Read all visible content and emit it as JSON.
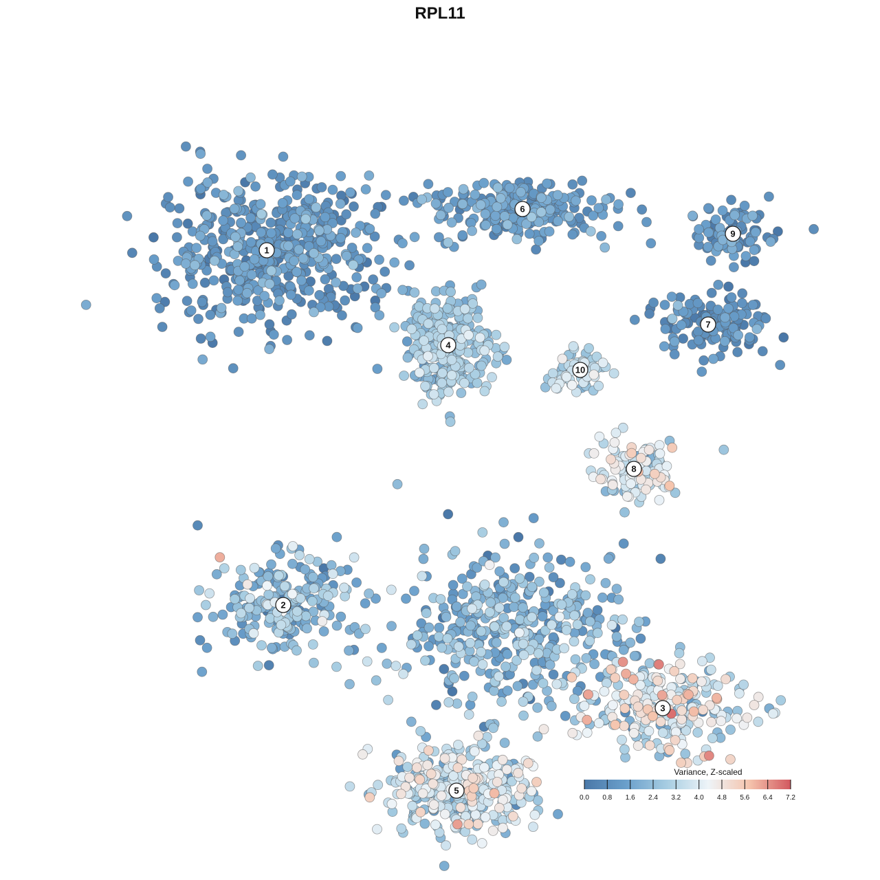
{
  "chart_data": {
    "type": "scatter",
    "title": "RPL11",
    "color_scale": {
      "title": "Variance, Z-scaled",
      "min": 0.0,
      "max": 7.2,
      "ticks": [
        "0.0",
        "0.8",
        "1.6",
        "2.4",
        "3.2",
        "4.0",
        "4.8",
        "5.6",
        "6.4",
        "7.2"
      ],
      "colors": [
        "#4a78a8",
        "#6a9fcb",
        "#a7cde2",
        "#eef4f8",
        "#f5c4ad",
        "#d2585f"
      ]
    },
    "axes_visible": false,
    "grid": false,
    "legend_position": "bottom-right",
    "clusters": [
      {
        "label": "1",
        "x": -4.2,
        "y": 4.6,
        "sx": 2.4,
        "sy": 1.6,
        "n": 520,
        "value": 1.0,
        "spread": 0.6
      },
      {
        "label": "6",
        "x": 2.0,
        "y": 5.6,
        "sx": 2.0,
        "sy": 0.7,
        "n": 230,
        "value": 1.3,
        "spread": 0.6
      },
      {
        "label": "9",
        "x": 7.1,
        "y": 5.0,
        "sx": 1.0,
        "sy": 0.6,
        "n": 90,
        "value": 1.0,
        "spread": 0.5
      },
      {
        "label": "7",
        "x": 6.5,
        "y": 2.8,
        "sx": 1.4,
        "sy": 0.7,
        "n": 130,
        "value": 0.8,
        "spread": 0.5
      },
      {
        "label": "4",
        "x": 0.2,
        "y": 2.3,
        "sx": 1.0,
        "sy": 1.1,
        "n": 270,
        "value": 2.6,
        "spread": 0.6
      },
      {
        "label": "10",
        "x": 3.4,
        "y": 1.7,
        "sx": 0.6,
        "sy": 0.6,
        "n": 70,
        "value": 3.2,
        "spread": 0.5
      },
      {
        "label": "8",
        "x": 4.7,
        "y": -0.7,
        "sx": 1.2,
        "sy": 0.7,
        "n": 110,
        "value": 3.6,
        "spread": 1.0
      },
      {
        "label": "2",
        "x": -3.8,
        "y": -4.0,
        "sx": 1.6,
        "sy": 1.1,
        "n": 220,
        "value": 2.2,
        "spread": 0.9
      },
      {
        "label": "3",
        "x": 5.4,
        "y": -6.5,
        "sx": 1.9,
        "sy": 1.0,
        "n": 250,
        "value": 3.8,
        "spread": 1.2
      },
      {
        "label": "5",
        "x": 0.4,
        "y": -8.5,
        "sx": 1.6,
        "sy": 1.0,
        "n": 360,
        "value": 3.4,
        "spread": 1.0
      },
      {
        "label": "",
        "x": 1.8,
        "y": -4.6,
        "sx": 2.6,
        "sy": 1.8,
        "n": 420,
        "value": 2.0,
        "spread": 0.9
      }
    ]
  }
}
